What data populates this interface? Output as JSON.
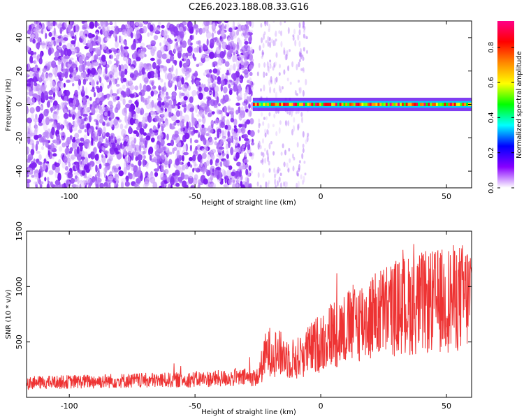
{
  "title": "C2E6.2023.188.08.33.G16",
  "chart_data": [
    {
      "type": "heatmap",
      "xlabel": "Height of straight line (km)",
      "ylabel": "Frequency (Hz)",
      "xlim": [
        -117,
        60
      ],
      "ylim": [
        -50,
        50
      ],
      "xticks": [
        -100,
        -50,
        0,
        50
      ],
      "yticks": [
        40,
        20,
        0,
        -20,
        -40
      ],
      "colorbar": {
        "label": "Normalized spectral amplitude",
        "range": [
          0,
          0.95
        ],
        "ticks": [
          "0.0",
          "0.2",
          "0.4",
          "0.6",
          "0.8"
        ],
        "colors": [
          "#ffffff",
          "#8800ff",
          "#0000ff",
          "#00ffff",
          "#00ff00",
          "#ffff00",
          "#ff8800",
          "#ff0000",
          "#ff0088"
        ]
      },
      "regions": [
        {
          "x": [
            -117,
            -27
          ],
          "description_type": "broadband noise",
          "amplitude": 0.2
        },
        {
          "x": [
            -27,
            60
          ],
          "frequency_hz": 0,
          "peak_amplitude": 0.9
        }
      ]
    },
    {
      "type": "line",
      "xlabel": "Height of straight line (km)",
      "ylabel": "SNR (10 * v/v)",
      "xlim": [
        -117,
        60
      ],
      "ylim": [
        0,
        1500
      ],
      "xticks": [
        -100,
        -50,
        0,
        50
      ],
      "yticks": [
        500,
        1000,
        1500
      ],
      "color": "#ee3333",
      "series": [
        {
          "x": [
            -117,
            -100,
            -80,
            -60,
            -40,
            -25,
            -22,
            -20,
            -15,
            -10,
            -5,
            0,
            5,
            10,
            15,
            20,
            25,
            30,
            35,
            40,
            45,
            50,
            55,
            60
          ],
          "values": [
            130,
            140,
            150,
            155,
            170,
            180,
            380,
            420,
            380,
            340,
            420,
            500,
            580,
            620,
            690,
            720,
            780,
            810,
            830,
            850,
            860,
            880,
            900,
            920
          ]
        }
      ]
    }
  ]
}
